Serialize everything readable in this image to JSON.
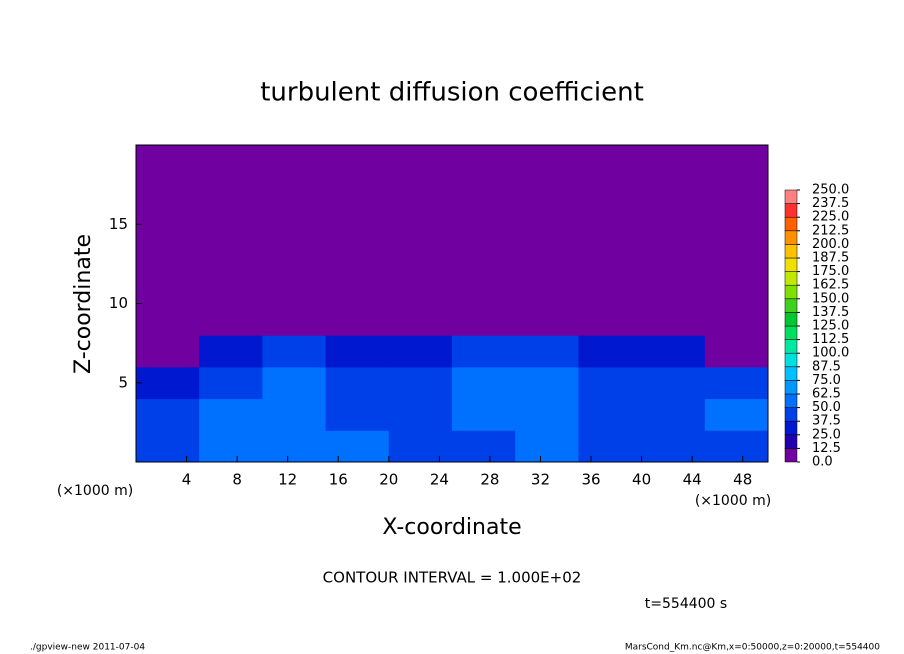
{
  "chart_data": {
    "type": "heatmap",
    "title": "turbulent diffusion coefficient",
    "x_label": "X-coordinate",
    "y_label": "Z-coordinate",
    "x_unit_labels": [
      "(×1000 m)",
      "(×1000 m)"
    ],
    "contour_note": "CONTOUR INTERVAL = 1.000E+02",
    "time_label": "t=554400 s",
    "footer_left": "./gpview-new  2011-07-04",
    "footer_right": "MarsCond_Km.nc@Km,x=0:50000,z=0:20000,t=554400",
    "xlim": [
      0,
      50
    ],
    "ylim": [
      0,
      20
    ],
    "xticks": [
      4,
      8,
      12,
      16,
      20,
      24,
      28,
      32,
      36,
      40,
      44,
      48
    ],
    "yticks": [
      5,
      10,
      15
    ],
    "xbins": [
      0,
      5,
      10,
      15,
      20,
      25,
      30,
      35,
      40,
      45,
      50
    ],
    "ybins": [
      0,
      2,
      4,
      6,
      8,
      10,
      12,
      14,
      16,
      18,
      20
    ],
    "z": [
      [
        45,
        55,
        60,
        50,
        40,
        45,
        50,
        45,
        40,
        45
      ],
      [
        40,
        50,
        55,
        45,
        40,
        50,
        55,
        45,
        45,
        50
      ],
      [
        30,
        45,
        50,
        40,
        45,
        50,
        50,
        45,
        40,
        45
      ],
      [
        5,
        30,
        40,
        35,
        30,
        40,
        40,
        35,
        35,
        10
      ],
      [
        0,
        0,
        5,
        5,
        5,
        0,
        0,
        5,
        5,
        0
      ],
      [
        5,
        5,
        10,
        10,
        5,
        10,
        10,
        10,
        5,
        5
      ],
      [
        5,
        5,
        5,
        10,
        10,
        10,
        10,
        10,
        5,
        5
      ],
      [
        5,
        0,
        0,
        5,
        5,
        5,
        5,
        5,
        0,
        5
      ],
      [
        0,
        0,
        0,
        5,
        0,
        0,
        0,
        0,
        0,
        0
      ],
      [
        0,
        0,
        0,
        0,
        0,
        0,
        0,
        0,
        0,
        0
      ]
    ],
    "colorbar_ticks": [
      {
        "value": 0,
        "label": "0.0"
      },
      12.5,
      {
        "value": 25,
        "label": "25.0"
      },
      37.5,
      {
        "value": 50,
        "label": "50.0"
      },
      62.5,
      {
        "value": 75,
        "label": "75.0"
      },
      87.5,
      {
        "value": 100,
        "label": "100.0"
      },
      112.5,
      {
        "value": 125,
        "label": "125.0"
      },
      137.5,
      {
        "value": 150,
        "label": "150.0"
      },
      162.5,
      {
        "value": 175,
        "label": "175.0"
      },
      187.5,
      {
        "value": 200,
        "label": "200.0"
      },
      212.5,
      {
        "value": 225,
        "label": "225.0"
      },
      237.5,
      {
        "value": 250,
        "label": "250.0"
      }
    ],
    "colors": [
      "#7000a0",
      "#2200b0",
      "#0018d0",
      "#0040e8",
      "#0070ff",
      "#0098ff",
      "#00c0ff",
      "#00e0e0",
      "#00e8a0",
      "#00e060",
      "#00c830",
      "#40d020",
      "#80e000",
      "#c0e800",
      "#f0e000",
      "#ffc000",
      "#ff9000",
      "#ff6000",
      "#ff3030",
      "#ff8080"
    ]
  }
}
